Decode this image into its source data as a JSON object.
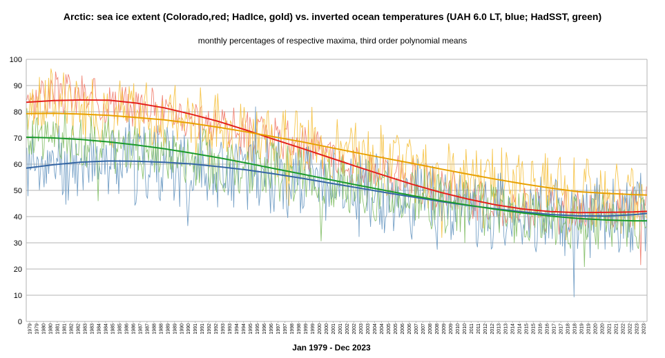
{
  "chart_data": {
    "type": "line",
    "title": "Arctic: sea ice extent (Colorado,red; HadIce, gold) vs. inverted ocean temperatures (UAH 6.0 LT, blue; HadSST, green)",
    "subtitle": "monthly percentages of respective maxima, third order polynomial means",
    "xlabel": "Jan 1979 - Dec 2023",
    "ylabel": "",
    "ylim": [
      0,
      100
    ],
    "yticks": [
      0,
      10,
      20,
      30,
      40,
      50,
      60,
      70,
      80,
      90,
      100
    ],
    "xlim": [
      1979.0,
      2024.0
    ],
    "x_tick_labels": [
      "1979",
      "1979",
      "1980",
      "1980",
      "1981",
      "1981",
      "1982",
      "1982",
      "1983",
      "1983",
      "1984",
      "1984",
      "1985",
      "1985",
      "1986",
      "1986",
      "1987",
      "1987",
      "1988",
      "1988",
      "1989",
      "1989",
      "1990",
      "1990",
      "1991",
      "1991",
      "1992",
      "1992",
      "1993",
      "1993",
      "1994",
      "1994",
      "1995",
      "1995",
      "1996",
      "1996",
      "1997",
      "1997",
      "1998",
      "1998",
      "1999",
      "1999",
      "2000",
      "2000",
      "2001",
      "2001",
      "2002",
      "2002",
      "2003",
      "2003",
      "2004",
      "2004",
      "2005",
      "2005",
      "2006",
      "2006",
      "2007",
      "2007",
      "2008",
      "2008",
      "2009",
      "2009",
      "2010",
      "2010",
      "2011",
      "2011",
      "2012",
      "2012",
      "2013",
      "2013",
      "2014",
      "2014",
      "2015",
      "2015",
      "2016",
      "2016",
      "2017",
      "2017",
      "2018",
      "2018",
      "2019",
      "2019",
      "2020",
      "2020",
      "2021",
      "2021",
      "2022",
      "2022",
      "2023",
      "2023"
    ],
    "grid": true,
    "legend": "none (series identified in title)",
    "trend_x": [
      1979,
      1981,
      1983,
      1985,
      1987,
      1989,
      1991,
      1993,
      1995,
      1997,
      1999,
      2001,
      2003,
      2005,
      2007,
      2009,
      2011,
      2013,
      2015,
      2017,
      2019,
      2021,
      2023,
      2024
    ],
    "series": [
      {
        "name": "Sea ice extent, Colorado (monthly)",
        "color": "#f08070",
        "kind": "monthly",
        "keys": [
          [
            1979,
            86
          ],
          [
            1981,
            87
          ],
          [
            1983,
            86
          ],
          [
            1985,
            83
          ],
          [
            1987,
            82
          ],
          [
            1989,
            80
          ],
          [
            1991,
            78
          ],
          [
            1993,
            75
          ],
          [
            1995,
            72
          ],
          [
            1997,
            69
          ],
          [
            1999,
            67
          ],
          [
            2001,
            63
          ],
          [
            2003,
            59
          ],
          [
            2005,
            56
          ],
          [
            2007,
            53
          ],
          [
            2009,
            50
          ],
          [
            2011,
            47
          ],
          [
            2013,
            45
          ],
          [
            2015,
            43
          ],
          [
            2017,
            42
          ],
          [
            2019,
            41
          ],
          [
            2021,
            42
          ],
          [
            2023,
            43
          ],
          [
            2024,
            43
          ]
        ],
        "amp": 7,
        "seed": 3
      },
      {
        "name": "Sea ice extent, HadIce (monthly)",
        "color": "#f5c242",
        "kind": "monthly",
        "keys": [
          [
            1979,
            82
          ],
          [
            1981,
            84
          ],
          [
            1983,
            83
          ],
          [
            1985,
            80
          ],
          [
            1987,
            79
          ],
          [
            1989,
            77
          ],
          [
            1991,
            76
          ],
          [
            1993,
            74
          ],
          [
            1995,
            72
          ],
          [
            1997,
            70
          ],
          [
            1999,
            68
          ],
          [
            2001,
            66
          ],
          [
            2003,
            63
          ],
          [
            2005,
            61
          ],
          [
            2007,
            58
          ],
          [
            2009,
            56
          ],
          [
            2011,
            54
          ],
          [
            2013,
            53
          ],
          [
            2015,
            51
          ],
          [
            2017,
            50
          ],
          [
            2019,
            48
          ],
          [
            2021,
            48
          ],
          [
            2023,
            47
          ],
          [
            2024,
            47
          ]
        ],
        "amp": 11,
        "seed": 7
      },
      {
        "name": "Inverted UAH 6.0 LT (monthly)",
        "color": "#6f9cc4",
        "kind": "monthly",
        "keys": [
          [
            1979,
            58
          ],
          [
            1981,
            60
          ],
          [
            1983,
            61
          ],
          [
            1985,
            61
          ],
          [
            1987,
            61
          ],
          [
            1989,
            60
          ],
          [
            1991,
            60
          ],
          [
            1993,
            58
          ],
          [
            1995,
            57
          ],
          [
            1997,
            56
          ],
          [
            1999,
            54
          ],
          [
            2001,
            52
          ],
          [
            2003,
            50
          ],
          [
            2005,
            48
          ],
          [
            2007,
            46
          ],
          [
            2009,
            44
          ],
          [
            2011,
            43
          ],
          [
            2013,
            42
          ],
          [
            2015,
            41
          ],
          [
            2017,
            40
          ],
          [
            2019,
            40
          ],
          [
            2021,
            40
          ],
          [
            2023,
            41
          ],
          [
            2024,
            42
          ]
        ],
        "amp": 13,
        "seed": 11
      },
      {
        "name": "Inverted HadSST (monthly)",
        "color": "#86c06a",
        "kind": "monthly",
        "keys": [
          [
            1979,
            72
          ],
          [
            1981,
            70
          ],
          [
            1983,
            69
          ],
          [
            1985,
            68
          ],
          [
            1987,
            66
          ],
          [
            1989,
            65
          ],
          [
            1991,
            63
          ],
          [
            1993,
            61
          ],
          [
            1995,
            59
          ],
          [
            1997,
            57
          ],
          [
            1999,
            55
          ],
          [
            2001,
            53
          ],
          [
            2003,
            51
          ],
          [
            2005,
            49
          ],
          [
            2007,
            47
          ],
          [
            2009,
            45
          ],
          [
            2011,
            44
          ],
          [
            2013,
            42
          ],
          [
            2015,
            41
          ],
          [
            2017,
            40
          ],
          [
            2019,
            39
          ],
          [
            2021,
            38
          ],
          [
            2023,
            38
          ],
          [
            2024,
            38
          ]
        ],
        "amp": 9,
        "seed": 17
      },
      {
        "name": "Colorado sea ice, 3rd-order polynomial mean",
        "color": "#e3201b",
        "kind": "trend",
        "values": [
          83.6,
          84.3,
          84.5,
          84.4,
          83.3,
          81.5,
          79.0,
          76.2,
          72.9,
          69.4,
          66.0,
          62.5,
          59.0,
          55.6,
          52.3,
          49.3,
          46.7,
          44.5,
          42.9,
          41.9,
          41.5,
          41.6,
          41.8,
          42.0
        ]
      },
      {
        "name": "HadIce sea ice, 3rd-order polynomial mean",
        "color": "#e8a000",
        "kind": "trend",
        "values": [
          79.3,
          79.4,
          79.1,
          78.6,
          77.8,
          76.9,
          75.6,
          74.0,
          72.3,
          70.4,
          68.5,
          66.4,
          64.3,
          62.3,
          60.3,
          58.2,
          56.2,
          54.3,
          52.5,
          50.9,
          49.5,
          48.9,
          48.4,
          48.2
        ]
      },
      {
        "name": "UAH 6.0 LT, 3rd-order polynomial mean",
        "color": "#3465a4",
        "kind": "trend",
        "values": [
          58.5,
          59.8,
          60.8,
          61.2,
          61.1,
          60.7,
          60.1,
          59.0,
          57.8,
          56.3,
          54.6,
          52.8,
          51.0,
          49.2,
          47.5,
          45.8,
          44.3,
          43.0,
          41.8,
          40.8,
          40.3,
          40.2,
          40.7,
          41.2
        ]
      },
      {
        "name": "HadSST, 3rd-order polynomial mean",
        "color": "#1a9a2c",
        "kind": "trend",
        "values": [
          70.3,
          70.0,
          69.4,
          68.5,
          67.3,
          65.9,
          64.2,
          62.4,
          60.4,
          58.3,
          56.2,
          54.1,
          52.0,
          50.0,
          48.0,
          46.1,
          44.4,
          42.8,
          41.4,
          40.2,
          39.3,
          38.7,
          38.4,
          38.4
        ]
      }
    ]
  }
}
